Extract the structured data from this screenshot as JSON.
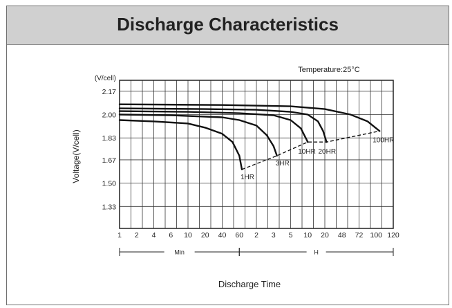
{
  "header": {
    "title": "Discharge Characteristics"
  },
  "chart_data": {
    "type": "line",
    "title": "Discharge Characteristics",
    "annotation": "Temperature:25°C",
    "xlabel": "Discharge Time",
    "ylabel": "Voltage(V/cell)",
    "yunit": "(V/cell)",
    "y_ticks": [
      "2.17",
      "2.00",
      "1.83",
      "1.67",
      "1.50",
      "1.33"
    ],
    "ylim": [
      1.17,
      2.25
    ],
    "x_ticks": [
      "1",
      "2",
      "4",
      "6",
      "10",
      "20",
      "40",
      "60",
      "2",
      "3",
      "5",
      "10",
      "20",
      "48",
      "72",
      "100",
      "120"
    ],
    "x_ranges": [
      {
        "label": "Min",
        "from_tick": 0,
        "to_tick": 7
      },
      {
        "label": "H",
        "from_tick": 7,
        "to_tick": 16
      }
    ],
    "grid": true,
    "series": [
      {
        "name": "1HR",
        "x": [
          0,
          2,
          4,
          5,
          6,
          6.6,
          7,
          7.15
        ],
        "y": [
          1.96,
          1.95,
          1.935,
          1.905,
          1.86,
          1.8,
          1.7,
          1.6
        ]
      },
      {
        "name": "3HR",
        "x": [
          0,
          3,
          6,
          7,
          8,
          8.6,
          9,
          9.2
        ],
        "y": [
          2.0,
          1.995,
          1.98,
          1.96,
          1.92,
          1.85,
          1.77,
          1.7
        ]
      },
      {
        "name": "10HR",
        "x": [
          0,
          4,
          7,
          9,
          10,
          10.6,
          11
        ],
        "y": [
          2.025,
          2.02,
          2.01,
          1.995,
          1.96,
          1.9,
          1.8
        ]
      },
      {
        "name": "20HR",
        "x": [
          0,
          5,
          8,
          10,
          11,
          11.6,
          11.9,
          12.1
        ],
        "y": [
          2.045,
          2.04,
          2.035,
          2.02,
          2.0,
          1.95,
          1.88,
          1.8
        ]
      },
      {
        "name": "100HR",
        "x": [
          0,
          6,
          10,
          12,
          13.5,
          14.5,
          15.2
        ],
        "y": [
          2.075,
          2.07,
          2.06,
          2.04,
          2.0,
          1.95,
          1.88
        ]
      }
    ],
    "end_voltage_line": {
      "x": [
        7.15,
        9.2,
        11,
        12.1,
        15.2
      ],
      "y": [
        1.6,
        1.7,
        1.8,
        1.8,
        1.88
      ]
    }
  }
}
